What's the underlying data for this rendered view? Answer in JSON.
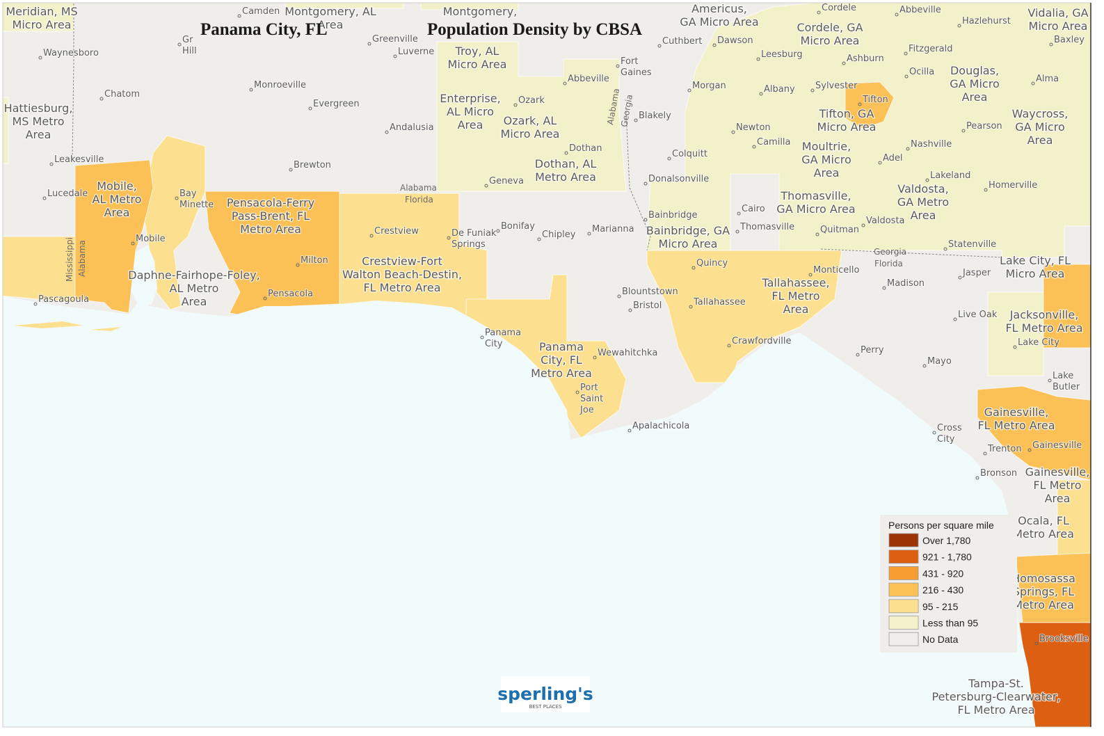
{
  "title": "Panama City, FL",
  "subtitle": "Population Density by CBSA",
  "legend": {
    "title": "Persons per square mile",
    "items": [
      {
        "label": "Over 1,780",
        "color": "#9c3307"
      },
      {
        "label": "921 - 1,780",
        "color": "#dc5f12"
      },
      {
        "label": "431 - 920",
        "color": "#f79d31"
      },
      {
        "label": "216 - 430",
        "color": "#fbc157"
      },
      {
        "label": "95 - 215",
        "color": "#fde08f"
      },
      {
        "label": "Less than 95",
        "color": "#f2f1c9"
      },
      {
        "label": "No Data",
        "color": "#f0eeea"
      }
    ]
  },
  "areas": [
    [
      "Meridian, MS",
      "Micro Area"
    ],
    [
      "Montgomery, AL",
      "Area"
    ],
    [
      "Montgomery,"
    ],
    [
      "Troy, AL",
      "Micro Area"
    ],
    [
      "Americus,",
      "GA Micro Area"
    ],
    [
      "Cordele, GA",
      "Micro Area"
    ],
    [
      "Vidalia, GA",
      "Micro Area"
    ],
    [
      "Hattiesburg,",
      "MS Metro",
      "Area"
    ],
    [
      "Enterprise,",
      "AL Micro",
      "Area"
    ],
    [
      "Ozark, AL",
      "Micro Area"
    ],
    [
      "Douglas,",
      "GA Micro",
      "Area"
    ],
    [
      "Tifton, GA",
      "Micro Area"
    ],
    [
      "Waycross,",
      "GA Micro",
      "Area"
    ],
    [
      "Moultrie,",
      "GA Micro",
      "Area"
    ],
    [
      "Dothan, AL",
      "Metro Area"
    ],
    [
      "Mobile,",
      "AL Metro",
      "Area"
    ],
    [
      "Thomasville,",
      "GA Micro Area"
    ],
    [
      "Valdosta,",
      "GA Metro",
      "Area"
    ],
    [
      "Pensacola-Ferry",
      "Pass-Brent, FL",
      "Metro Area"
    ],
    [
      "Bainbridge, GA",
      "Micro Area"
    ],
    [
      "Crestview-Fort",
      "Walton Beach-Destin,",
      "FL Metro Area"
    ],
    [
      "Lake City, FL",
      "Micro Area"
    ],
    [
      "Daphne-Fairhope-Foley,",
      "AL Metro",
      "Area"
    ],
    [
      "Tallahassee,",
      "FL Metro",
      "Area"
    ],
    [
      "Jacksonville,",
      "FL Metro Area"
    ],
    [
      "Panama",
      "City, FL",
      "Metro Area"
    ],
    [
      "Gainesville,",
      "FL Metro Area"
    ],
    [
      "Gainesville,",
      "FL Metro",
      "Area"
    ],
    [
      "Ocala, FL",
      "Metro Area"
    ],
    [
      "Homosassa",
      "Springs, FL",
      "Metro Area"
    ],
    [
      "Tampa-St.",
      "Petersburg-Clearwater,",
      "FL Metro Area"
    ]
  ],
  "places": [
    [
      "Camden"
    ],
    [
      "Gr",
      "Hill"
    ],
    [
      "Greenville"
    ],
    [
      "Luverne"
    ],
    [
      "Waynesboro"
    ],
    [
      "Chatom"
    ],
    [
      "Monroeville"
    ],
    [
      "Evergreen"
    ],
    [
      "Andalusia"
    ],
    [
      "Brewton"
    ],
    [
      "Leakesville"
    ],
    [
      "Lucedale"
    ],
    [
      "Bay",
      "Minette"
    ],
    [
      "Mobile"
    ],
    [
      "Pascagoula"
    ],
    [
      "Milton"
    ],
    [
      "Pensacola"
    ],
    [
      "Crestview"
    ],
    [
      "De Funiak",
      "Springs"
    ],
    [
      "Bonifay"
    ],
    [
      "Chipley"
    ],
    [
      "Marianna"
    ],
    [
      "Geneva"
    ],
    [
      "Abbeville"
    ],
    [
      "Ozark"
    ],
    [
      "Dothan"
    ],
    [
      "Fort",
      "Gaines"
    ],
    [
      "Cuthbert"
    ],
    [
      "Dawson"
    ],
    [
      "Leesburg"
    ],
    [
      "Albany"
    ],
    [
      "Morgan"
    ],
    [
      "Blakely"
    ],
    [
      "Newton"
    ],
    [
      "Camilla"
    ],
    [
      "Colquitt"
    ],
    [
      "Donalsonville"
    ],
    [
      "Bainbridge"
    ],
    [
      "Cairo"
    ],
    [
      "Thomasville"
    ],
    [
      "Quitman"
    ],
    [
      "Valdosta"
    ],
    [
      "Sylvester"
    ],
    [
      "Ashburn"
    ],
    [
      "Tifton"
    ],
    [
      "Fitzgerald"
    ],
    [
      "Ocilla"
    ],
    [
      "Cordele"
    ],
    [
      "Abbeville"
    ],
    [
      "Hazlehurst"
    ],
    [
      "Baxley"
    ],
    [
      "Alma"
    ],
    [
      "Pearson"
    ],
    [
      "Nashville"
    ],
    [
      "Adel"
    ],
    [
      "Lakeland"
    ],
    [
      "Homerville"
    ],
    [
      "Statenville"
    ],
    [
      "Quincy"
    ],
    [
      "Tallahassee"
    ],
    [
      "Monticello"
    ],
    [
      "Madison"
    ],
    [
      "Jasper"
    ],
    [
      "Live Oak"
    ],
    [
      "Lake City"
    ],
    [
      "Lake",
      "Butler"
    ],
    [
      "Perry"
    ],
    [
      "Mayo"
    ],
    [
      "Crawfordville"
    ],
    [
      "Blountstown"
    ],
    [
      "Bristol"
    ],
    [
      "Panama",
      "City"
    ],
    [
      "Wewahitchka"
    ],
    [
      "Port",
      "Saint",
      "Joe"
    ],
    [
      "Apalachicola"
    ],
    [
      "Cross",
      "City"
    ],
    [
      "Trenton"
    ],
    [
      "Gainesville"
    ],
    [
      "Bronson"
    ],
    [
      "Brooksville"
    ]
  ],
  "states": [
    "Alabama",
    "Florida",
    "Georgia",
    "Florida",
    "Mississippi",
    "Alabama",
    "Alabama",
    "Georgia"
  ],
  "logo": {
    "name": "sperling's",
    "tagline": "BEST PLACES"
  }
}
